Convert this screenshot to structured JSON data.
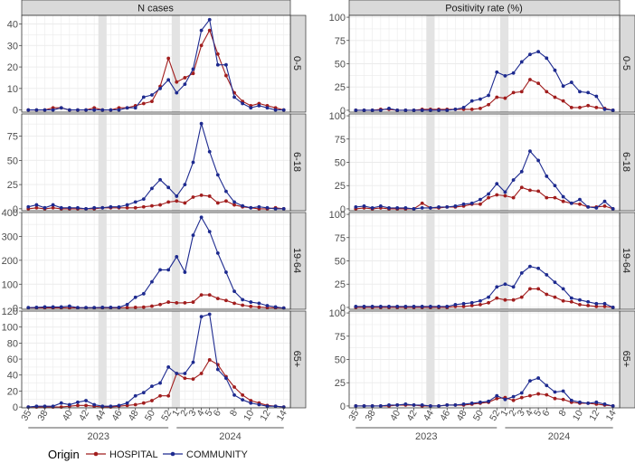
{
  "colors": {
    "hospital": "#a11d1d",
    "community": "#1d2a8f",
    "strip_bg": "#d9d9d9",
    "shade": "#e3e3e3",
    "grid": "#ebebeb",
    "border": "#333333"
  },
  "chart_data": {
    "type": "line",
    "facet_columns": [
      "N cases",
      "Positivity rate (%)"
    ],
    "facet_rows": [
      "0-5",
      "6-18",
      "19-64",
      "65+"
    ],
    "week_tick_labels": [
      "35",
      "38",
      "40",
      "42",
      "44",
      "46",
      "48",
      "50",
      "52",
      "1",
      "2",
      "3",
      "4",
      "5",
      "6",
      "8",
      "10",
      "12",
      "14"
    ],
    "week_tick_positions": [
      0,
      2,
      5,
      7,
      9,
      11,
      13,
      15,
      17,
      18,
      19,
      20,
      21,
      22,
      23,
      25,
      27,
      29,
      31
    ],
    "years": [
      {
        "label": "2023",
        "from": 0,
        "to": 17
      },
      {
        "label": "2024",
        "from": 18,
        "to": 31
      }
    ],
    "shaded_week_ranges": [
      [
        8.5,
        9.5
      ],
      [
        17.4,
        18.4
      ]
    ],
    "x_range": [
      -0.8,
      31.8
    ],
    "legend": {
      "title": "Origin",
      "entries": [
        "HOSPITAL",
        "COMMUNITY"
      ]
    },
    "panels": [
      {
        "column": 0,
        "row": 0,
        "ylim": [
          -1,
          44
        ],
        "yticks": [
          0,
          10,
          20,
          30,
          40
        ],
        "series": [
          {
            "name": "HOSPITAL",
            "values": [
              0,
              0,
              0,
              1,
              1,
              0,
              0,
              0,
              1,
              0,
              0,
              1,
              1,
              2,
              3,
              4,
              11,
              24,
              13,
              15,
              17,
              30,
              37,
              26,
              16,
              8,
              4,
              2,
              3,
              2,
              1,
              0
            ]
          },
          {
            "name": "COMMUNITY",
            "values": [
              0,
              0,
              0,
              0,
              1,
              0,
              0,
              0,
              0,
              0,
              0,
              0,
              1,
              1,
              6,
              7,
              10,
              14,
              8,
              12,
              19,
              37,
              42,
              21,
              21,
              6,
              3,
              1,
              2,
              1,
              0,
              0
            ]
          }
        ]
      },
      {
        "column": 0,
        "row": 1,
        "ylim": [
          -2,
          98
        ],
        "yticks": [
          0,
          25,
          50,
          75
        ],
        "series": [
          {
            "name": "HOSPITAL",
            "values": [
              0,
              1,
              0,
              1,
              0,
              0,
              0,
              0,
              0,
              1,
              1,
              1,
              1,
              1,
              2,
              3,
              4,
              7,
              8,
              6,
              12,
              14,
              13,
              6,
              8,
              4,
              2,
              1,
              0,
              0,
              1,
              0
            ]
          },
          {
            "name": "COMMUNITY",
            "values": [
              2,
              4,
              1,
              4,
              1,
              1,
              1,
              0,
              1,
              1,
              2,
              2,
              4,
              7,
              10,
              21,
              30,
              22,
              13,
              25,
              48,
              88,
              59,
              35,
              18,
              7,
              3,
              1,
              2,
              1,
              0,
              0
            ]
          }
        ]
      },
      {
        "column": 0,
        "row": 2,
        "ylim": [
          -5,
          400
        ],
        "yticks": [
          0,
          100,
          200,
          300,
          400
        ],
        "series": [
          {
            "name": "HOSPITAL",
            "values": [
              1,
              1,
              1,
              1,
              1,
              1,
              1,
              1,
              1,
              1,
              1,
              1,
              2,
              3,
              4,
              8,
              15,
              25,
              22,
              22,
              25,
              55,
              55,
              40,
              32,
              20,
              12,
              7,
              4,
              2,
              1,
              0
            ]
          },
          {
            "name": "COMMUNITY",
            "values": [
              2,
              3,
              5,
              5,
              5,
              8,
              2,
              2,
              2,
              3,
              3,
              3,
              15,
              45,
              60,
              110,
              160,
              160,
              215,
              150,
              305,
              380,
              320,
              230,
              150,
              70,
              35,
              25,
              20,
              10,
              5,
              0
            ]
          }
        ]
      },
      {
        "column": 0,
        "row": 3,
        "ylim": [
          -1,
          120
        ],
        "yticks": [
          0,
          20,
          40,
          60,
          80,
          100,
          120
        ],
        "series": [
          {
            "name": "HOSPITAL",
            "values": [
              0,
              0,
              0,
              0,
              0,
              1,
              2,
              2,
              1,
              0,
              0,
              1,
              2,
              3,
              5,
              8,
              14,
              14,
              42,
              36,
              35,
              42,
              59,
              53,
              38,
              25,
              15,
              8,
              5,
              2,
              1,
              0
            ]
          },
          {
            "name": "COMMUNITY",
            "values": [
              0,
              1,
              1,
              1,
              5,
              3,
              6,
              8,
              3,
              1,
              1,
              2,
              5,
              14,
              18,
              26,
              30,
              50,
              42,
              42,
              56,
              113,
              116,
              47,
              36,
              15,
              9,
              5,
              3,
              1,
              1,
              0
            ]
          }
        ]
      },
      {
        "column": 1,
        "row": 0,
        "ylim": [
          -2,
          102
        ],
        "yticks": [
          0,
          25,
          50,
          75,
          100
        ],
        "series": [
          {
            "name": "HOSPITAL",
            "values": [
              0,
              0,
              0,
              1,
              1,
              0,
              0,
              0,
              1,
              1,
              1,
              1,
              1,
              1,
              1,
              2,
              6,
              14,
              13,
              19,
              20,
              33,
              29,
              20,
              14,
              10,
              3,
              3,
              5,
              3,
              2,
              0
            ]
          },
          {
            "name": "COMMUNITY",
            "values": [
              0,
              0,
              0,
              0,
              2,
              0,
              0,
              0,
              0,
              0,
              0,
              0,
              1,
              3,
              10,
              12,
              16,
              41,
              37,
              40,
              52,
              60,
              63,
              56,
              43,
              26,
              30,
              20,
              19,
              15,
              1,
              0
            ]
          }
        ]
      },
      {
        "column": 1,
        "row": 1,
        "ylim": [
          -2,
          102
        ],
        "yticks": [
          0,
          25,
          50,
          75,
          100
        ],
        "series": [
          {
            "name": "HOSPITAL",
            "values": [
              0,
              1,
              0,
              1,
              0,
              0,
              0,
              0,
              6,
              1,
              1,
              2,
              2,
              3,
              5,
              5,
              12,
              15,
              14,
              12,
              23,
              20,
              19,
              12,
              12,
              8,
              6,
              5,
              2,
              2,
              3,
              0
            ]
          },
          {
            "name": "COMMUNITY",
            "values": [
              2,
              3,
              1,
              3,
              1,
              1,
              1,
              0,
              1,
              1,
              2,
              2,
              3,
              5,
              6,
              10,
              16,
              27,
              18,
              31,
              40,
              62,
              52,
              35,
              25,
              13,
              6,
              10,
              2,
              1,
              8,
              0
            ]
          }
        ]
      },
      {
        "column": 1,
        "row": 2,
        "ylim": [
          -2,
          102
        ],
        "yticks": [
          0,
          25,
          50,
          75,
          100
        ],
        "series": [
          {
            "name": "HOSPITAL",
            "values": [
              0,
              0,
              0,
              0,
              0,
              0,
              0,
              0,
              0,
              0,
              0,
              0,
              1,
              1,
              2,
              3,
              5,
              10,
              8,
              8,
              11,
              20,
              20,
              14,
              11,
              7,
              6,
              3,
              2,
              1,
              1,
              0
            ]
          },
          {
            "name": "COMMUNITY",
            "values": [
              1,
              1,
              1,
              1,
              1,
              1,
              1,
              1,
              1,
              1,
              1,
              1,
              3,
              4,
              5,
              7,
              11,
              22,
              25,
              22,
              37,
              44,
              42,
              35,
              27,
              20,
              10,
              8,
              6,
              4,
              4,
              0
            ]
          }
        ]
      },
      {
        "column": 1,
        "row": 3,
        "ylim": [
          -2,
          102
        ],
        "yticks": [
          0,
          25,
          50,
          75,
          100
        ],
        "series": [
          {
            "name": "HOSPITAL",
            "values": [
              0,
              0,
              0,
              0,
              0,
              1,
              1,
              1,
              0,
              0,
              0,
              1,
              1,
              1,
              2,
              3,
              4,
              8,
              9,
              6,
              9,
              11,
              13,
              12,
              8,
              7,
              4,
              3,
              3,
              2,
              1,
              0
            ]
          },
          {
            "name": "COMMUNITY",
            "values": [
              0,
              0,
              0,
              0,
              1,
              1,
              2,
              1,
              1,
              0,
              0,
              1,
              1,
              2,
              3,
              4,
              5,
              11,
              7,
              10,
              14,
              27,
              30,
              22,
              15,
              16,
              6,
              4,
              3,
              4,
              2,
              0
            ]
          }
        ]
      }
    ]
  }
}
